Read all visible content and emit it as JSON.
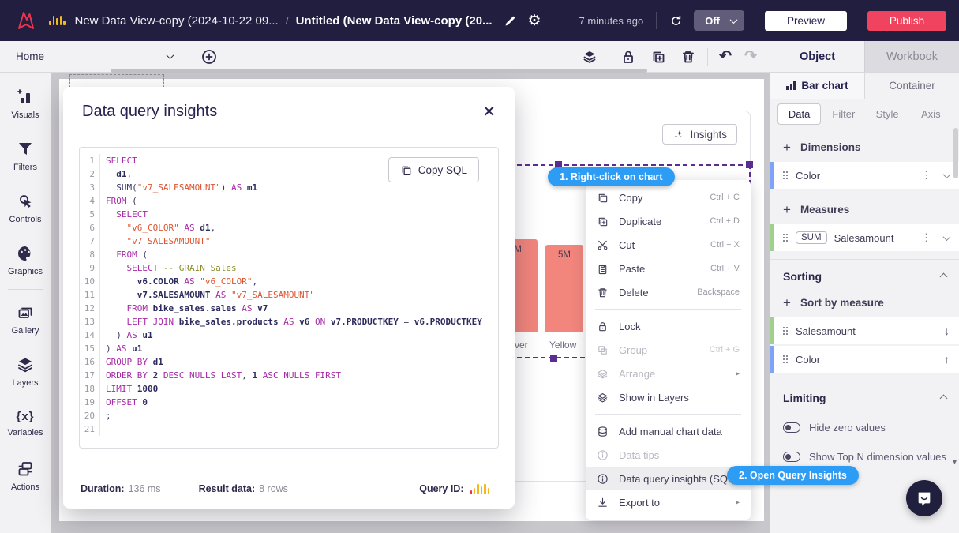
{
  "topbar": {
    "doc_title": "New Data View-copy (2024-10-22 09...",
    "separator": "/",
    "page_title": "Untitled (New Data View-copy (20...",
    "saved_ago": "7 minutes ago",
    "auto_refresh": "Off",
    "preview": "Preview",
    "publish": "Publish"
  },
  "toolbar": {
    "home": "Home",
    "object_tab": "Object",
    "workbook_tab": "Workbook"
  },
  "left_sidebar": {
    "items": [
      {
        "icon": "visuals",
        "label": "Visuals"
      },
      {
        "icon": "filters",
        "label": "Filters"
      },
      {
        "icon": "controls",
        "label": "Controls"
      },
      {
        "icon": "graphics",
        "label": "Graphics"
      },
      {
        "divider": true
      },
      {
        "icon": "gallery",
        "label": "Gallery"
      },
      {
        "icon": "layers",
        "label": "Layers"
      },
      {
        "icon": "variables",
        "label": "Variables"
      },
      {
        "icon": "actions",
        "label": "Actions"
      }
    ]
  },
  "canvas": {
    "insights_button": "Insights"
  },
  "chart": {
    "bar1_label": "M",
    "bar2_label": "5M",
    "cat1": "ver",
    "cat2": "Yellow"
  },
  "chart_data": {
    "type": "bar",
    "categories_visible": [
      "ver",
      "Yellow"
    ],
    "bar_value_labels_visible": [
      "M",
      "5M"
    ],
    "estimated_values_millions": [
      6,
      5
    ],
    "bar_color": "#f2867d",
    "note_partially_hidden": "chart mostly covered by modal and context menu"
  },
  "callouts": {
    "step1": "1. Right-click on chart",
    "step2": "2. Open Query Insights"
  },
  "context_menu": {
    "items": [
      {
        "icon": "copy",
        "label": "Copy",
        "shortcut": "Ctrl + C"
      },
      {
        "icon": "duplicate",
        "label": "Duplicate",
        "shortcut": "Ctrl + D"
      },
      {
        "icon": "cut",
        "label": "Cut",
        "shortcut": "Ctrl + X"
      },
      {
        "icon": "paste",
        "label": "Paste",
        "shortcut": "Ctrl + V"
      },
      {
        "icon": "delete",
        "label": "Delete",
        "shortcut": "Backspace"
      },
      {
        "divider": true
      },
      {
        "icon": "lock",
        "label": "Lock"
      },
      {
        "icon": "group",
        "label": "Group",
        "shortcut": "Ctrl + G",
        "disabled": true
      },
      {
        "icon": "arrange",
        "label": "Arrange",
        "disabled": true,
        "submenu": true
      },
      {
        "icon": "layers",
        "label": "Show in Layers"
      },
      {
        "divider": true
      },
      {
        "icon": "database",
        "label": "Add manual chart data"
      },
      {
        "icon": "info",
        "label": "Data tips",
        "disabled": true
      },
      {
        "icon": "info",
        "label": "Data query insights (SQL)",
        "highlighted": true
      },
      {
        "icon": "download",
        "label": "Export to",
        "submenu": true
      }
    ]
  },
  "modal": {
    "title": "Data query insights",
    "copy_sql": "Copy SQL",
    "footer": {
      "duration_label": "Duration:",
      "duration_value": "136 ms",
      "result_label": "Result data:",
      "result_value": "8 rows",
      "query_id_label": "Query ID:"
    },
    "code": {
      "lines": [
        [
          [
            "k",
            "SELECT"
          ]
        ],
        [
          [
            "t",
            "  "
          ],
          [
            "i",
            "d1"
          ],
          [
            "t",
            ","
          ]
        ],
        [
          [
            "t",
            "  SUM("
          ],
          [
            "s",
            "\"v7_SALESAMOUNT\""
          ],
          [
            "t",
            ") "
          ],
          [
            "k",
            "AS"
          ],
          [
            "t",
            " "
          ],
          [
            "i",
            "m1"
          ]
        ],
        [
          [
            "k",
            "FROM"
          ],
          [
            "t",
            " ("
          ]
        ],
        [
          [
            "t",
            "  "
          ],
          [
            "k",
            "SELECT"
          ]
        ],
        [
          [
            "t",
            "    "
          ],
          [
            "s",
            "\"v6_COLOR\""
          ],
          [
            "t",
            " "
          ],
          [
            "k",
            "AS"
          ],
          [
            "t",
            " "
          ],
          [
            "i",
            "d1"
          ],
          [
            "t",
            ","
          ]
        ],
        [
          [
            "t",
            "    "
          ],
          [
            "s",
            "\"v7_SALESAMOUNT\""
          ]
        ],
        [
          [
            "t",
            "  "
          ],
          [
            "k",
            "FROM"
          ],
          [
            "t",
            " ("
          ]
        ],
        [
          [
            "t",
            "    "
          ],
          [
            "k",
            "SELECT"
          ],
          [
            "t",
            " "
          ],
          [
            "c",
            "-- GRAIN Sales"
          ]
        ],
        [
          [
            "t",
            "      "
          ],
          [
            "i",
            "v6.COLOR"
          ],
          [
            "t",
            " "
          ],
          [
            "k",
            "AS"
          ],
          [
            "t",
            " "
          ],
          [
            "s",
            "\"v6_COLOR\""
          ],
          [
            "t",
            ","
          ]
        ],
        [
          [
            "t",
            "      "
          ],
          [
            "i",
            "v7.SALESAMOUNT"
          ],
          [
            "t",
            " "
          ],
          [
            "k",
            "AS"
          ],
          [
            "t",
            " "
          ],
          [
            "s",
            "\"v7_SALESAMOUNT\""
          ]
        ],
        [
          [
            "t",
            "    "
          ],
          [
            "k",
            "FROM"
          ],
          [
            "t",
            " "
          ],
          [
            "i",
            "bike_sales.sales"
          ],
          [
            "t",
            " "
          ],
          [
            "k",
            "AS"
          ],
          [
            "t",
            " "
          ],
          [
            "i",
            "v7"
          ]
        ],
        [
          [
            "t",
            "    "
          ],
          [
            "k",
            "LEFT JOIN"
          ],
          [
            "t",
            " "
          ],
          [
            "i",
            "bike_sales.products"
          ],
          [
            "t",
            " "
          ],
          [
            "k",
            "AS"
          ],
          [
            "t",
            " "
          ],
          [
            "i",
            "v6"
          ],
          [
            "t",
            " "
          ],
          [
            "k",
            "ON"
          ],
          [
            "t",
            " "
          ],
          [
            "i",
            "v7.PRODUCTKEY"
          ],
          [
            "t",
            " = "
          ],
          [
            "i",
            "v6.PRODUCTKEY"
          ]
        ],
        [
          [
            "t",
            "  ) "
          ],
          [
            "k",
            "AS"
          ],
          [
            "t",
            " "
          ],
          [
            "i",
            "u1"
          ]
        ],
        [
          [
            "t",
            ") "
          ],
          [
            "k",
            "AS"
          ],
          [
            "t",
            " "
          ],
          [
            "i",
            "u1"
          ]
        ],
        [
          [
            "k",
            "GROUP BY"
          ],
          [
            "t",
            " "
          ],
          [
            "i",
            "d1"
          ]
        ],
        [
          [
            "k",
            "ORDER BY"
          ],
          [
            "t",
            " "
          ],
          [
            "i",
            "2"
          ],
          [
            "t",
            " "
          ],
          [
            "k",
            "DESC NULLS LAST"
          ],
          [
            "t",
            ", "
          ],
          [
            "i",
            "1"
          ],
          [
            "t",
            " "
          ],
          [
            "k",
            "ASC NULLS FIRST"
          ]
        ],
        [
          [
            "k",
            "LIMIT"
          ],
          [
            "t",
            " "
          ],
          [
            "i",
            "1000"
          ]
        ],
        [
          [
            "k",
            "OFFSET"
          ],
          [
            "t",
            " "
          ],
          [
            "i",
            "0"
          ]
        ],
        [
          [
            "t",
            ";"
          ]
        ],
        []
      ]
    }
  },
  "right_panel": {
    "widget_tabs": {
      "active": "Bar chart",
      "other": "Container"
    },
    "tabs": [
      {
        "label": "Data",
        "active": true
      },
      {
        "label": "Filter"
      },
      {
        "label": "Style"
      },
      {
        "label": "Axis"
      }
    ],
    "dimensions": {
      "header": "Dimensions",
      "fields": [
        {
          "label": "Color",
          "color": "blue"
        }
      ]
    },
    "measures": {
      "header": "Measures",
      "fields": [
        {
          "badge": "SUM",
          "label": "Salesamount",
          "color": "green"
        }
      ]
    },
    "sorting": {
      "header": "Sorting",
      "add_label": "Sort by measure",
      "rows": [
        {
          "label": "Salesamount",
          "direction": "↓",
          "color": "green"
        },
        {
          "label": "Color",
          "direction": "↑",
          "color": "blue"
        }
      ]
    },
    "limiting": {
      "header": "Limiting",
      "toggles": [
        {
          "label": "Hide zero values",
          "on": false
        },
        {
          "label": "Show Top N dimension values",
          "on": false
        }
      ]
    }
  },
  "colors": {
    "topbar_navy": "#221e40",
    "publish_red": "#f0435f",
    "callout_blue": "#2d9cf4",
    "selection_purple": "#5b2d90",
    "bar_salmon": "#f2867d",
    "brand_yellow": "#f5b81c",
    "dimension_blue": "#7fa3f7",
    "measure_green": "#9fd18c",
    "sql_keyword": "#a62ba6",
    "sql_string": "#dd5430",
    "sql_comment": "#8a8a2a"
  }
}
